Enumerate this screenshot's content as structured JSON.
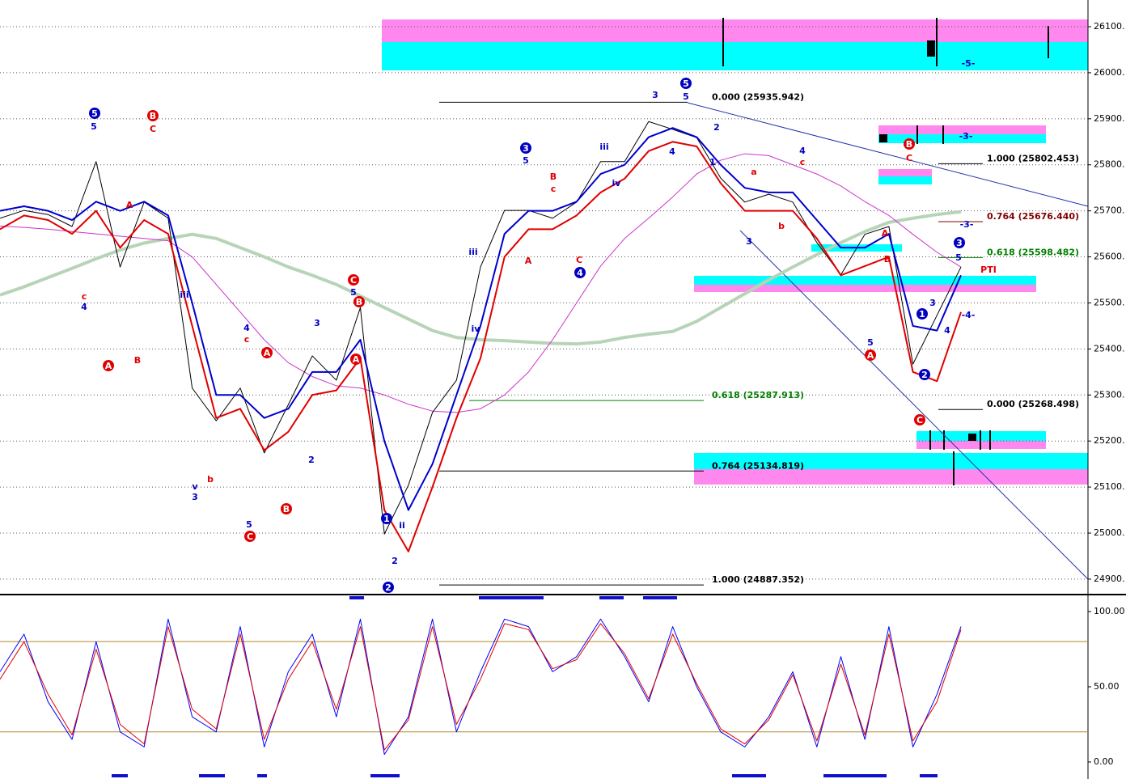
{
  "chart_data": [
    {
      "type": "line",
      "categories": [
        null,
        null,
        null,
        null,
        null,
        null,
        null,
        null,
        null,
        null,
        null,
        null,
        null,
        null,
        null,
        null,
        null,
        null,
        null,
        null,
        null,
        null,
        null,
        null,
        null,
        null,
        null,
        null,
        null,
        null,
        null,
        null,
        null,
        null,
        null,
        null,
        null,
        null,
        null,
        null,
        null
      ],
      "ylim": [
        24870,
        26158
      ],
      "yticks": [
        {
          "value": 24900,
          "label": "24900."
        },
        {
          "value": 25000,
          "label": "25000."
        },
        {
          "value": 25100,
          "label": "25100."
        },
        {
          "value": 25200,
          "label": "25200."
        },
        {
          "value": 25300,
          "label": "25300."
        },
        {
          "value": 25400,
          "label": "25400."
        },
        {
          "value": 25500,
          "label": "25500."
        },
        {
          "value": 25600,
          "label": "25600."
        },
        {
          "value": 25700,
          "label": "25700."
        },
        {
          "value": 25800,
          "label": "25800."
        },
        {
          "value": 25900,
          "label": "25900."
        },
        {
          "value": 26000,
          "label": "26000."
        },
        {
          "value": 26100,
          "label": "26100."
        }
      ],
      "grid": true,
      "series": [
        {
          "color": "#b8d4b8",
          "values": [
            25517,
            25535,
            25555,
            25575,
            25596,
            25615,
            25630,
            25640,
            25649,
            25640,
            25620,
            25600,
            25578,
            25560,
            25540,
            25515,
            25490,
            25465,
            25440,
            25425,
            25420,
            25418,
            25415,
            25412,
            25411,
            25415,
            25425,
            25432,
            25438,
            25460,
            25490,
            25520,
            25550,
            25578,
            25605,
            25631,
            25655,
            25675,
            25684,
            25692,
            25698
          ]
        },
        {
          "color": "#cc33cc",
          "values": [
            25667,
            25664,
            25660,
            25655,
            25650,
            25645,
            25640,
            25635,
            25600,
            25540,
            25480,
            25420,
            25370,
            25340,
            25320,
            25315,
            25300,
            25280,
            25265,
            25262,
            25270,
            25300,
            25350,
            25420,
            25500,
            25580,
            25640,
            25684,
            25730,
            25780,
            25810,
            25824,
            25820,
            25800,
            25780,
            25754,
            25720,
            25690,
            25649,
            25610,
            25578
          ]
        },
        {
          "color": "#000000",
          "values": [
            25684,
            25701,
            25692,
            25666,
            25807,
            25578,
            25719,
            25684,
            25315,
            25244,
            25315,
            25174,
            25279,
            25385,
            25332,
            25490,
            24998,
            25104,
            25262,
            25332,
            25578,
            25701,
            25701,
            25684,
            25719,
            25807,
            25807,
            25894,
            25877,
            25859,
            25771,
            25719,
            25736,
            25719,
            25631,
            25561,
            25649,
            25666,
            25367,
            25473,
            25578
          ]
        },
        {
          "color": "#e00000",
          "values": [
            25660,
            25690,
            25680,
            25650,
            25700,
            25620,
            25680,
            25650,
            25450,
            25250,
            25270,
            25180,
            25220,
            25300,
            25310,
            25380,
            25050,
            24960,
            25100,
            25250,
            25380,
            25600,
            25660,
            25660,
            25690,
            25740,
            25770,
            25830,
            25850,
            25840,
            25760,
            25700,
            25700,
            25700,
            25640,
            25560,
            25580,
            25600,
            25350,
            25330,
            25480
          ]
        },
        {
          "color": "#0000cc",
          "values": [
            25700,
            25710,
            25700,
            25680,
            25720,
            25700,
            25720,
            25690,
            25500,
            25300,
            25300,
            25250,
            25270,
            25350,
            25350,
            25420,
            25200,
            25050,
            25150,
            25300,
            25450,
            25650,
            25700,
            25700,
            25720,
            25780,
            25800,
            25860,
            25880,
            25860,
            25800,
            25750,
            25740,
            25740,
            25680,
            25620,
            25620,
            25650,
            25450,
            25440,
            25560
          ]
        }
      ],
      "fib_levels": [
        {
          "label": "0.000 (25935.942)",
          "value": 25935.942,
          "color": "#000000"
        },
        {
          "label": "1.000 (25802.453)",
          "value": 25802.453,
          "color": "#000000"
        },
        {
          "label": "0.764 (25676.440)",
          "value": 25676.44,
          "color": "#800000"
        },
        {
          "label": "0.618 (25598.482)",
          "value": 25598.482,
          "color": "#008000"
        },
        {
          "label": "0.618 (25287.913)",
          "value": 25287.913,
          "color": "#008000"
        },
        {
          "label": "0.000 (25268.498)",
          "value": 25268.498,
          "color": "#000000"
        },
        {
          "label": "0.764 (25134.819)",
          "value": 25134.819,
          "color": "#000000"
        },
        {
          "label": "1.000 (24887.352)",
          "value": 24887.352,
          "color": "#000000"
        }
      ],
      "annotations": [
        {
          "text": "5",
          "color": "#0000c0",
          "circled": true
        },
        {
          "text": "5",
          "color": "#0000c0",
          "circled": false
        },
        {
          "text": "B",
          "color": "#e00000",
          "circled": true
        },
        {
          "text": "C",
          "color": "#e00000",
          "circled": false
        },
        {
          "text": "c",
          "color": "#e00000",
          "circled": false
        },
        {
          "text": "4",
          "color": "#0000c0",
          "circled": false
        },
        {
          "text": "A",
          "color": "#e00000",
          "circled": true
        },
        {
          "text": "B",
          "color": "#e00000",
          "circled": false
        },
        {
          "text": "A",
          "color": "#e00000",
          "circled": false
        },
        {
          "text": "iii",
          "color": "#0000c0",
          "circled": false
        },
        {
          "text": "v",
          "color": "#0000c0",
          "circled": false
        },
        {
          "text": "3",
          "color": "#0000c0",
          "circled": false
        },
        {
          "text": "b",
          "color": "#e00000",
          "circled": false
        },
        {
          "text": "4",
          "color": "#0000c0",
          "circled": false
        },
        {
          "text": "c",
          "color": "#e00000",
          "circled": false
        },
        {
          "text": "A",
          "color": "#e00000",
          "circled": true
        },
        {
          "text": "5",
          "color": "#0000c0",
          "circled": false
        },
        {
          "text": "C",
          "color": "#e00000",
          "circled": true
        },
        {
          "text": "B",
          "color": "#e00000",
          "circled": true
        },
        {
          "text": "3",
          "color": "#0000c0",
          "circled": false
        },
        {
          "text": "2",
          "color": "#0000c0",
          "circled": false
        },
        {
          "text": "C",
          "color": "#e00000",
          "circled": true
        },
        {
          "text": "5",
          "color": "#0000c0",
          "circled": false
        },
        {
          "text": "B",
          "color": "#e00000",
          "circled": true
        },
        {
          "text": "A",
          "color": "#e00000",
          "circled": true
        },
        {
          "text": "1",
          "color": "#0000c0",
          "circled": true
        },
        {
          "text": "2",
          "color": "#0000c0",
          "circled": true
        },
        {
          "text": "ii",
          "color": "#0000c0",
          "circled": false
        },
        {
          "text": "2",
          "color": "#0000c0",
          "circled": false
        },
        {
          "text": "iii",
          "color": "#0000c0",
          "circled": false
        },
        {
          "text": "iv",
          "color": "#0000c0",
          "circled": false
        },
        {
          "text": "3",
          "color": "#0000c0",
          "circled": true
        },
        {
          "text": "5",
          "color": "#0000c0",
          "circled": false
        },
        {
          "text": "A",
          "color": "#e00000",
          "circled": false
        },
        {
          "text": "B",
          "color": "#e00000",
          "circled": false
        },
        {
          "text": "c",
          "color": "#e00000",
          "circled": false
        },
        {
          "text": "C",
          "color": "#e00000",
          "circled": false
        },
        {
          "text": "4",
          "color": "#0000c0",
          "circled": true
        },
        {
          "text": "iii",
          "color": "#0000c0",
          "circled": false
        },
        {
          "text": "iv",
          "color": "#0000c0",
          "circled": false
        },
        {
          "text": "3",
          "color": "#0000c0",
          "circled": false
        },
        {
          "text": "5",
          "color": "#0000c0",
          "circled": true
        },
        {
          "text": "5",
          "color": "#0000c0",
          "circled": false
        },
        {
          "text": "4",
          "color": "#0000c0",
          "circled": false
        },
        {
          "text": "2",
          "color": "#0000c0",
          "circled": false
        },
        {
          "text": "1",
          "color": "#0000c0",
          "circled": false
        },
        {
          "text": "a",
          "color": "#e00000",
          "circled": false
        },
        {
          "text": "b",
          "color": "#e00000",
          "circled": false
        },
        {
          "text": "3",
          "color": "#0000c0",
          "circled": false
        },
        {
          "text": "4",
          "color": "#0000c0",
          "circled": false
        },
        {
          "text": "c",
          "color": "#e00000",
          "circled": false
        },
        {
          "text": "B",
          "color": "#e00000",
          "circled": true
        },
        {
          "text": "C",
          "color": "#e00000",
          "circled": false
        },
        {
          "text": "A",
          "color": "#e00000",
          "circled": false
        },
        {
          "text": "B",
          "color": "#e00000",
          "circled": false
        },
        {
          "text": "5",
          "color": "#0000c0",
          "circled": false
        },
        {
          "text": "A",
          "color": "#e00000",
          "circled": true
        },
        {
          "text": "1",
          "color": "#0000c0",
          "circled": true
        },
        {
          "text": "2",
          "color": "#0000c0",
          "circled": true
        },
        {
          "text": "C",
          "color": "#e00000",
          "circled": true
        },
        {
          "text": "3",
          "color": "#0000c0",
          "circled": false
        },
        {
          "text": "4",
          "color": "#0000c0",
          "circled": false
        },
        {
          "text": "3",
          "color": "#0000c0",
          "circled": true
        },
        {
          "text": "5",
          "color": "#0000c0",
          "circled": false
        },
        {
          "text": "PTI",
          "color": "#e00000",
          "circled": false
        },
        {
          "text": "-5-",
          "color": "#0000c0",
          "circled": false
        },
        {
          "text": "-3-",
          "color": "#0000c0",
          "circled": false
        },
        {
          "text": "-3-",
          "color": "#0000c0",
          "circled": false
        },
        {
          "text": "-4-",
          "color": "#0000c0",
          "circled": false
        }
      ]
    },
    {
      "type": "line",
      "categories": [
        null,
        null,
        null,
        null,
        null,
        null,
        null,
        null,
        null,
        null,
        null,
        null,
        null,
        null,
        null,
        null,
        null,
        null,
        null,
        null,
        null,
        null,
        null,
        null,
        null,
        null,
        null,
        null,
        null,
        null,
        null,
        null,
        null,
        null,
        null,
        null,
        null,
        null,
        null,
        null,
        null
      ],
      "ylim": [
        -9.7,
        108.6
      ],
      "yticks": [
        {
          "value": 0,
          "label": "0.00"
        },
        {
          "value": 50,
          "label": "50.00"
        },
        {
          "value": 100,
          "label": "100.00"
        }
      ],
      "levels": [
        80,
        20
      ],
      "level_color": "#b08a2a",
      "series": [
        {
          "color": "#0000ff",
          "values": [
            60,
            85,
            40,
            15,
            80,
            20,
            10,
            95,
            30,
            20,
            90,
            10,
            60,
            85,
            30,
            95,
            5,
            30,
            95,
            20,
            60,
            95,
            90,
            60,
            70,
            95,
            70,
            40,
            90,
            50,
            20,
            10,
            30,
            60,
            10,
            70,
            15,
            90,
            10,
            45,
            90
          ]
        },
        {
          "color": "#e00000",
          "values": [
            55,
            80,
            45,
            18,
            75,
            25,
            12,
            90,
            35,
            22,
            85,
            15,
            55,
            80,
            35,
            90,
            8,
            28,
            90,
            25,
            55,
            92,
            88,
            62,
            68,
            92,
            72,
            42,
            85,
            52,
            22,
            12,
            28,
            58,
            14,
            65,
            18,
            85,
            14,
            40,
            88
          ]
        }
      ]
    }
  ]
}
